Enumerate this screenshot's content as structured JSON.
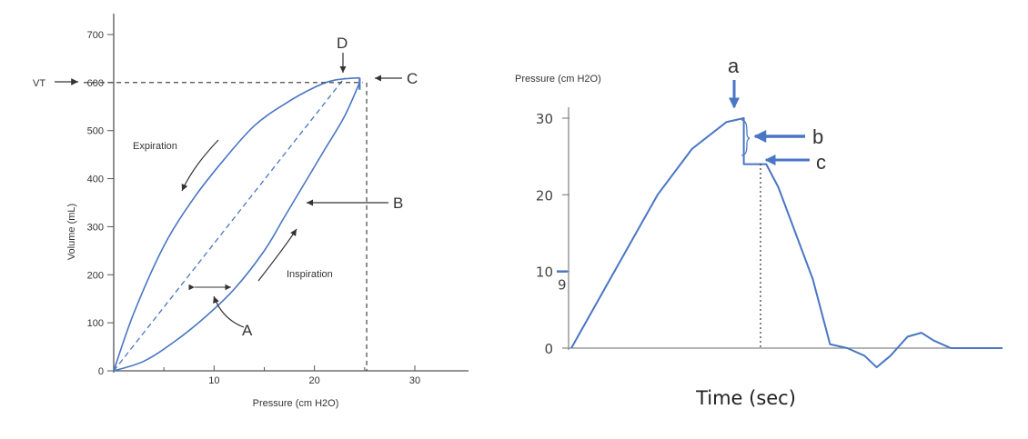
{
  "colors": {
    "curve": "#4a76c4",
    "axis": "#555555",
    "text": "#333333",
    "arrow": "#4a76c4"
  },
  "chart_data": [
    {
      "type": "line",
      "xlabel": "Pressure (cm H2O)",
      "ylabel": "Volume (mL)",
      "xlim": [
        0,
        30
      ],
      "ylim": [
        0,
        700
      ],
      "x_ticks": [
        "10",
        "20",
        "30"
      ],
      "y_ticks": [
        "0",
        "100",
        "200",
        "300",
        "400",
        "500",
        "600",
        "700"
      ],
      "vt_label": "VT",
      "vt_value": 600,
      "series": [
        {
          "name": "Expiration",
          "points": [
            [
              0,
              0
            ],
            [
              2,
              120
            ],
            [
              5,
              260
            ],
            [
              8,
              360
            ],
            [
              11,
              440
            ],
            [
              14,
              510
            ],
            [
              17,
              555
            ],
            [
              20,
              590
            ],
            [
              22,
              605
            ],
            [
              24.5,
              610
            ]
          ]
        },
        {
          "name": "Inspiration",
          "points": [
            [
              0,
              0
            ],
            [
              3,
              20
            ],
            [
              6,
              60
            ],
            [
              9,
              110
            ],
            [
              12,
              170
            ],
            [
              15,
              250
            ],
            [
              17,
              320
            ],
            [
              19,
              390
            ],
            [
              21,
              460
            ],
            [
              23,
              530
            ],
            [
              24.5,
              600
            ]
          ]
        },
        {
          "name": "",
          "style": "dashed",
          "points": [
            [
              0,
              0
            ],
            [
              23,
              610
            ]
          ]
        }
      ],
      "annotations": {
        "expiration": "Expiration",
        "inspiration": "Inspiration",
        "A": "A",
        "B": "B",
        "C": "C",
        "D": "D"
      }
    },
    {
      "type": "line",
      "ylabel": "Pressure (cm H2O)",
      "xlabel": "Time (sec)",
      "ylim": [
        0,
        30
      ],
      "y_ticks": [
        "0",
        "10",
        "20",
        "30"
      ],
      "y_tick_extra": "9",
      "series": [
        {
          "name": "",
          "points": [
            [
              0,
              0
            ],
            [
              2,
              8
            ],
            [
              5,
              20
            ],
            [
              7,
              26
            ],
            [
              9,
              29.5
            ],
            [
              10,
              30
            ],
            [
              10,
              24
            ],
            [
              11.3,
              24
            ],
            [
              12,
              21
            ],
            [
              14,
              9
            ],
            [
              15,
              0.5
            ],
            [
              16,
              0
            ],
            [
              17,
              -1
            ],
            [
              17.7,
              -2.5
            ],
            [
              18.5,
              -1
            ],
            [
              19.5,
              1.5
            ],
            [
              20.3,
              2
            ],
            [
              21,
              1
            ],
            [
              22,
              0
            ],
            [
              25,
              0
            ]
          ]
        }
      ],
      "annotations": {
        "a": "a",
        "b": "b",
        "c": "c"
      }
    }
  ]
}
